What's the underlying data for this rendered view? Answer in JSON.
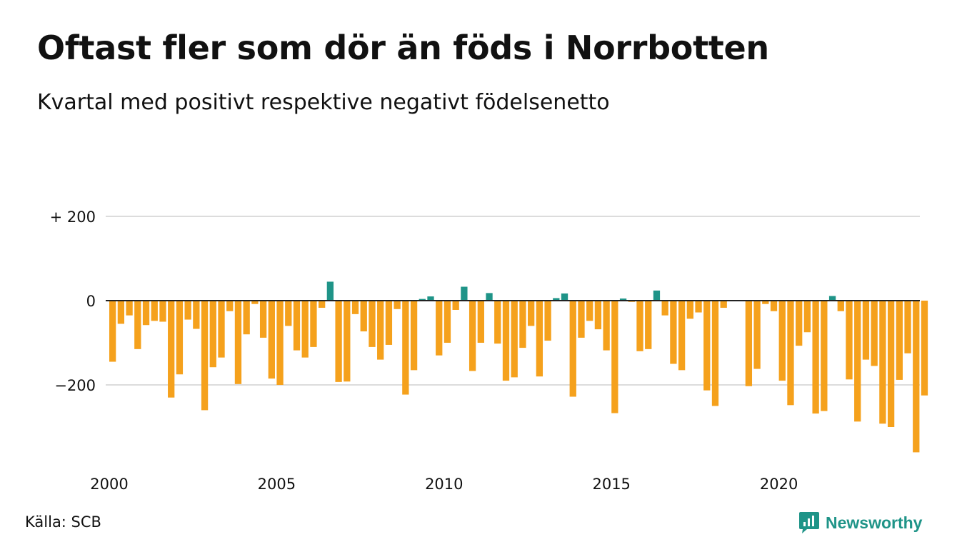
{
  "title": "Oftast fler som dör än föds i Norrbotten",
  "subtitle": "Kvartal med positivt respektive negativt födelsenetto",
  "source": "Källa: SCB",
  "brand": {
    "name": "Newsworthy",
    "icon": "newsworthy-logo-icon"
  },
  "colors": {
    "negative": "#f5a11c",
    "positive": "#1f9488",
    "grid": "#dcdcdc",
    "zero_line": "#222222"
  },
  "chart_data": {
    "type": "bar",
    "xlabel": "",
    "ylabel": "",
    "ylim": [
      -370,
      215
    ],
    "y_ticks": [
      {
        "value": 200,
        "label": "+ 200"
      },
      {
        "value": 0,
        "label": "0"
      },
      {
        "value": -200,
        "label": "−200"
      }
    ],
    "x_ticks": [
      {
        "index": 0,
        "label": "2000"
      },
      {
        "index": 20,
        "label": "2005"
      },
      {
        "index": 40,
        "label": "2010"
      },
      {
        "index": 60,
        "label": "2015"
      },
      {
        "index": 80,
        "label": "2020"
      }
    ],
    "grid": true,
    "series": [
      {
        "values": [
          -145,
          -55,
          -35,
          -115,
          -58,
          -48,
          -50,
          -230,
          -175,
          -45,
          -67,
          -260,
          -158,
          -135,
          -25,
          -198,
          -80,
          -8,
          -88,
          -185,
          -200,
          -60,
          -118,
          -135,
          -110,
          -17,
          45,
          -193,
          -192,
          -32,
          -73,
          -110,
          -140,
          -105,
          -20,
          -223,
          -165,
          4,
          10,
          -130,
          -100,
          -22,
          33,
          -167,
          -100,
          18,
          -102,
          -190,
          -182,
          -112,
          -60,
          -180,
          -95,
          6,
          17,
          -228,
          -88,
          -48,
          -68,
          -118,
          -267,
          5,
          -3,
          -120,
          -115,
          24,
          -35,
          -150,
          -165,
          -43,
          -28,
          -213,
          -250,
          -17,
          0,
          0,
          -203,
          -162,
          -8,
          -25,
          -190,
          -248,
          -107,
          -75,
          -268,
          -262,
          11,
          -25,
          -187,
          -287,
          -140,
          -155,
          -292,
          -300,
          -188,
          -125,
          -360,
          -225
        ]
      }
    ]
  }
}
